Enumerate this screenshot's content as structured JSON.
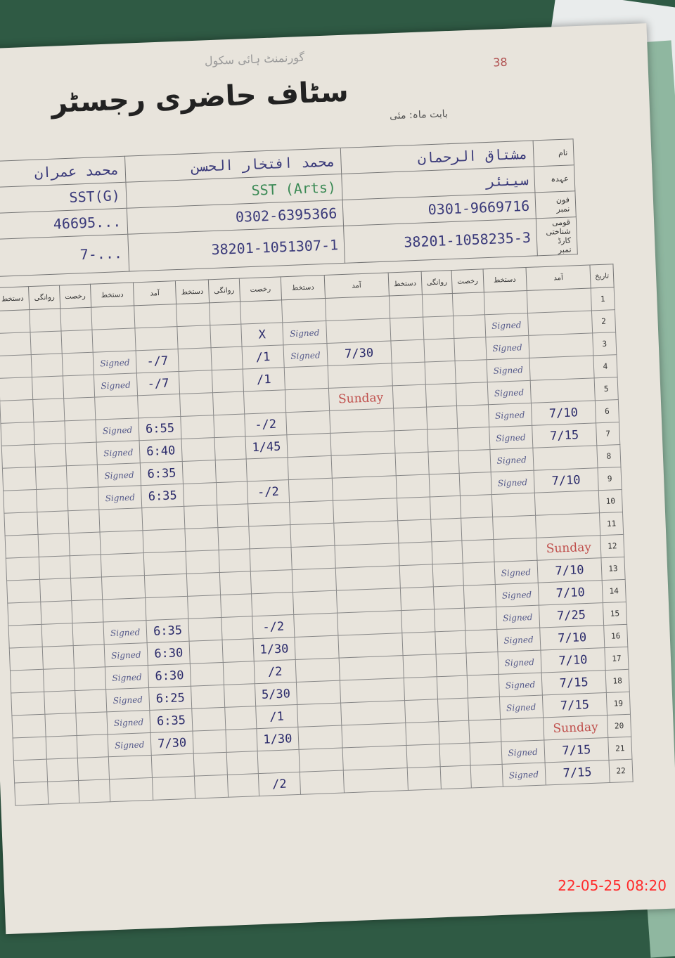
{
  "register": {
    "school_name": "گورنمنٹ ہائی سکول",
    "page_number": "38",
    "title": "سٹاف حاضری رجسٹر",
    "month_label": "بابت ماہ",
    "month_value": "مئی"
  },
  "labels": {
    "name": "نام",
    "designation": "عہدہ",
    "phone": "فون نمبر",
    "cnic": "قومی شناختی کارڈ نمبر"
  },
  "staff": [
    {
      "name": "مشتاق الرحمان",
      "designation": "سینئر",
      "phone": "0301-9669716",
      "cnic": "38201-1058235-3"
    },
    {
      "name": "محمد افتخار الحسن",
      "designation": "SST (Arts)",
      "phone": "0302-6395366",
      "cnic": "38201-1051307-1"
    },
    {
      "name": "محمد عمران",
      "designation": "SST(G)",
      "phone": "...46695",
      "cnic": "...-7"
    }
  ],
  "columns": [
    "تاریخ",
    "آمد",
    "دستخط",
    "رخصت",
    "روانگی",
    "دستخط"
  ],
  "rows": [
    {
      "day": "1",
      "s1": [
        "",
        "",
        ""
      ],
      "s2": [
        "",
        "",
        ""
      ],
      "s3": [
        "",
        "",
        ""
      ]
    },
    {
      "day": "2",
      "s1": [
        "",
        "Signed",
        ""
      ],
      "s2": [
        "",
        "Signed",
        "X"
      ],
      "s3": [
        "",
        "",
        ""
      ]
    },
    {
      "day": "3",
      "s1": [
        "",
        "Signed",
        ""
      ],
      "s2": [
        "7/30",
        "Signed",
        "1/"
      ],
      "s3": [
        "7/-",
        "Signed",
        ""
      ]
    },
    {
      "day": "4",
      "s1": [
        "",
        "Signed",
        ""
      ],
      "s2": [
        "",
        "",
        "1/"
      ],
      "s3": [
        "7/-",
        "Signed",
        ""
      ]
    },
    {
      "day": "5",
      "s1": [
        "",
        "Signed",
        ""
      ],
      "s2": [
        "Sunday",
        "",
        ""
      ],
      "s3": [
        "",
        "",
        ""
      ]
    },
    {
      "day": "6",
      "s1": [
        "7/10",
        "Signed",
        ""
      ],
      "s2": [
        "",
        "",
        "2/-"
      ],
      "s3": [
        "6:55",
        "Signed",
        ""
      ]
    },
    {
      "day": "7",
      "s1": [
        "7/15",
        "Signed",
        ""
      ],
      "s2": [
        "",
        "",
        "1/45"
      ],
      "s3": [
        "6:40",
        "Signed",
        ""
      ]
    },
    {
      "day": "8",
      "s1": [
        "",
        "Signed",
        ""
      ],
      "s2": [
        "",
        "",
        ""
      ],
      "s3": [
        "6:35",
        "Signed",
        ""
      ]
    },
    {
      "day": "9",
      "s1": [
        "7/10",
        "Signed",
        ""
      ],
      "s2": [
        "",
        "",
        "2/-"
      ],
      "s3": [
        "6:35",
        "Signed",
        ""
      ]
    },
    {
      "day": "10",
      "s1": [
        "",
        "",
        ""
      ],
      "s2": [
        "",
        "",
        ""
      ],
      "s3": [
        "",
        "",
        ""
      ]
    },
    {
      "day": "11",
      "s1": [
        "",
        "",
        ""
      ],
      "s2": [
        "",
        "",
        ""
      ],
      "s3": [
        "",
        "",
        ""
      ]
    },
    {
      "day": "12",
      "s1": [
        "Sunday",
        "",
        ""
      ],
      "s2": [
        "",
        "",
        ""
      ],
      "s3": [
        "",
        "",
        ""
      ]
    },
    {
      "day": "13",
      "s1": [
        "7/10",
        "Signed",
        ""
      ],
      "s2": [
        "",
        "",
        ""
      ],
      "s3": [
        "",
        "",
        ""
      ]
    },
    {
      "day": "14",
      "s1": [
        "7/10",
        "Signed",
        ""
      ],
      "s2": [
        "",
        "",
        ""
      ],
      "s3": [
        "",
        "",
        ""
      ]
    },
    {
      "day": "15",
      "s1": [
        "7/25",
        "Signed",
        ""
      ],
      "s2": [
        "",
        "",
        "2/-"
      ],
      "s3": [
        "6:35",
        "Signed",
        ""
      ]
    },
    {
      "day": "16",
      "s1": [
        "7/10",
        "Signed",
        ""
      ],
      "s2": [
        "",
        "",
        "1/30"
      ],
      "s3": [
        "6:30",
        "Signed",
        ""
      ]
    },
    {
      "day": "17",
      "s1": [
        "7/10",
        "Signed",
        ""
      ],
      "s2": [
        "",
        "",
        "2/"
      ],
      "s3": [
        "6:30",
        "Signed",
        ""
      ]
    },
    {
      "day": "18",
      "s1": [
        "7/15",
        "Signed",
        ""
      ],
      "s2": [
        "",
        "",
        "5/30"
      ],
      "s3": [
        "6:25",
        "Signed",
        ""
      ]
    },
    {
      "day": "19",
      "s1": [
        "7/15",
        "Signed",
        ""
      ],
      "s2": [
        "",
        "",
        "1/"
      ],
      "s3": [
        "6:35",
        "Signed",
        ""
      ]
    },
    {
      "day": "20",
      "s1": [
        "Sunday",
        "",
        ""
      ],
      "s2": [
        "",
        "",
        "1/30"
      ],
      "s3": [
        "7/30",
        "Signed",
        ""
      ]
    },
    {
      "day": "21",
      "s1": [
        "7/15",
        "Signed",
        ""
      ],
      "s2": [
        "",
        "",
        ""
      ],
      "s3": [
        "",
        "",
        ""
      ]
    },
    {
      "day": "22",
      "s1": [
        "7/15",
        "Signed",
        ""
      ],
      "s2": [
        "",
        "",
        "2/"
      ],
      "s3": [
        "",
        "",
        ""
      ]
    }
  ],
  "photo_timestamp": "22-05-25  08:20"
}
